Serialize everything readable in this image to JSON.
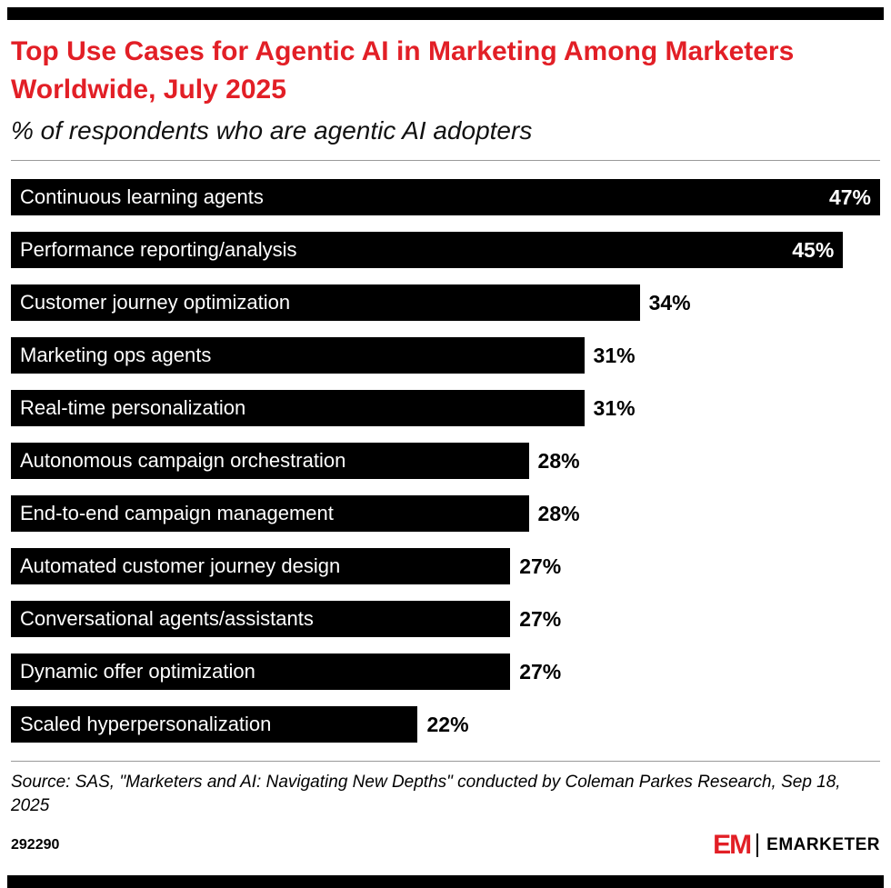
{
  "header": {
    "title": "Top Use Cases for Agentic AI in Marketing Among Marketers Worldwide, July 2025",
    "subtitle": "% of respondents who are agentic AI adopters"
  },
  "chart_data": {
    "type": "bar",
    "orientation": "horizontal",
    "title": "Top Use Cases for Agentic AI in Marketing Among Marketers Worldwide, July 2025",
    "subtitle": "% of respondents who are agentic AI adopters",
    "categories": [
      "Continuous learning agents",
      "Performance reporting/analysis",
      "Customer journey optimization",
      "Marketing ops agents",
      "Real-time personalization",
      "Autonomous campaign orchestration",
      "End-to-end campaign management",
      "Automated customer journey design",
      "Conversational agents/assistants",
      "Dynamic offer optimization",
      "Scaled hyperpersonalization"
    ],
    "values": [
      47,
      45,
      34,
      31,
      31,
      28,
      28,
      27,
      27,
      27,
      22
    ],
    "value_suffix": "%",
    "xlim": [
      0,
      47
    ],
    "grid": false,
    "legend": false,
    "bar_color": "#000000",
    "label_color_inside": "#ffffff",
    "value_color_outside": "#000000"
  },
  "footer": {
    "source": "Source: SAS, \"Marketers and AI: Navigating New Depths\" conducted by Coleman Parkes Research, Sep 18, 2025",
    "chart_id": "292290",
    "brand_mark": "EM",
    "brand_name": "EMARKETER"
  },
  "colors": {
    "accent_red": "#e21f26",
    "bar_black": "#000000",
    "background": "#ffffff"
  }
}
